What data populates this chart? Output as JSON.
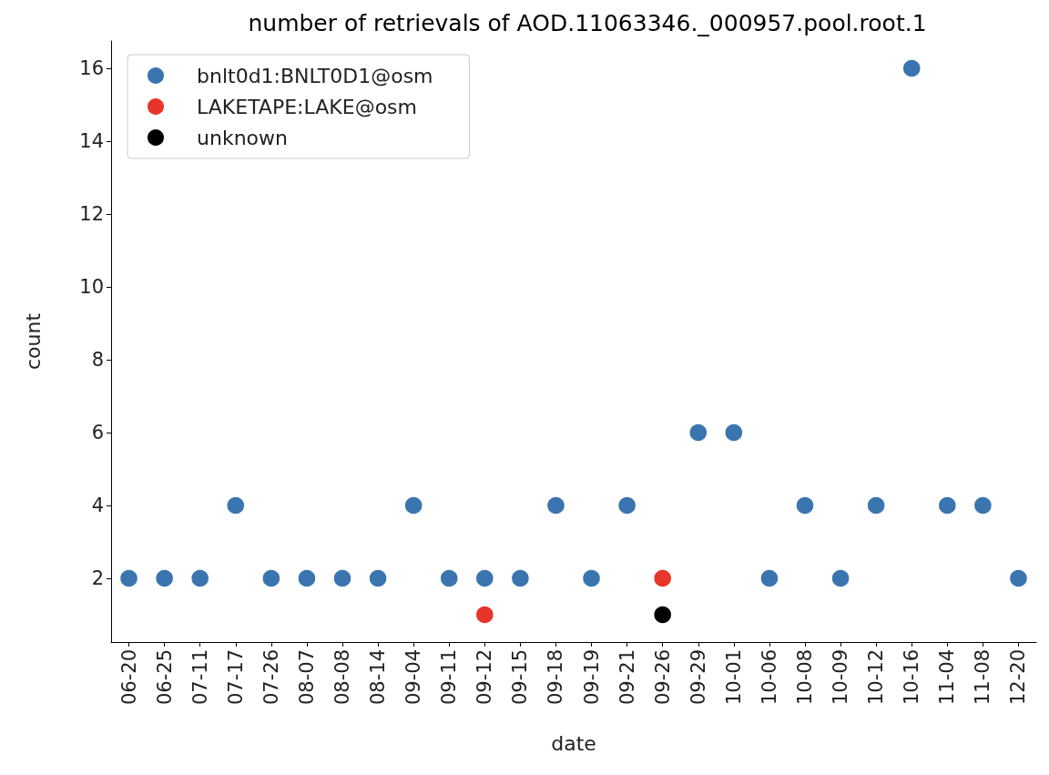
{
  "chart_data": {
    "type": "scatter",
    "title": "number of retrievals of AOD.11063346._000957.pool.root.1",
    "xlabel": "date",
    "ylabel": "count",
    "categories": [
      "06-20",
      "06-25",
      "07-11",
      "07-17",
      "07-26",
      "08-07",
      "08-08",
      "08-14",
      "09-04",
      "09-11",
      "09-12",
      "09-15",
      "09-18",
      "09-19",
      "09-21",
      "09-26",
      "09-29",
      "10-01",
      "10-06",
      "10-08",
      "10-09",
      "10-12",
      "10-16",
      "11-04",
      "11-08",
      "12-20"
    ],
    "series": [
      {
        "name": "bnlt0d1:BNLT0D1@osm",
        "color": "#3a75b0",
        "x": [
          "06-20",
          "06-25",
          "07-11",
          "07-17",
          "07-26",
          "08-07",
          "08-08",
          "08-14",
          "09-04",
          "09-11",
          "09-12",
          "09-15",
          "09-18",
          "09-19",
          "09-21",
          "09-29",
          "10-01",
          "10-06",
          "10-08",
          "10-09",
          "10-12",
          "10-16",
          "11-04",
          "11-08",
          "12-20"
        ],
        "values": [
          2,
          2,
          2,
          4,
          2,
          2,
          2,
          2,
          4,
          2,
          2,
          2,
          4,
          2,
          4,
          6,
          6,
          2,
          4,
          2,
          4,
          16,
          4,
          4,
          2
        ]
      },
      {
        "name": "LAKETAPE:LAKE@osm",
        "color": "#e8352a",
        "x": [
          "09-12",
          "09-26"
        ],
        "values": [
          1,
          2
        ]
      },
      {
        "name": "unknown",
        "color": "#000000",
        "x": [
          "09-26"
        ],
        "values": [
          1
        ]
      }
    ],
    "ylim": [
      0.25,
      16.75
    ],
    "yticks": [
      2,
      4,
      6,
      8,
      10,
      12,
      14,
      16
    ],
    "grid": false,
    "legend": "top left",
    "marker": "circle"
  }
}
